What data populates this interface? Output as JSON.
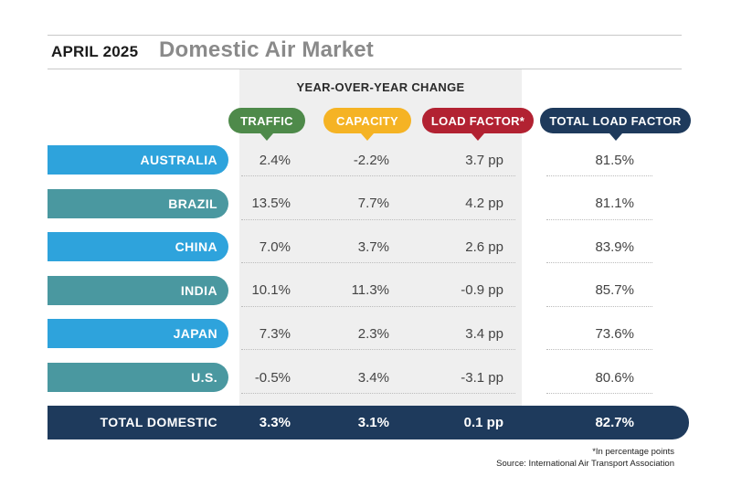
{
  "header": {
    "period": "APRIL 2025",
    "title": "Domestic Air Market"
  },
  "colors": {
    "traffic": "#4e8a4a",
    "capacity": "#f5b324",
    "load_factor": "#b22232",
    "total_load_factor": "#1e3a5c",
    "row_blue": "#2ea3dc",
    "row_teal": "#4a98a0",
    "total_bar": "#1e3a5c"
  },
  "chart_data": {
    "type": "table",
    "title": "Domestic Air Market",
    "group_header": "YEAR-OVER-YEAR CHANGE",
    "columns": [
      "TRAFFIC",
      "CAPACITY",
      "LOAD FACTOR*",
      "TOTAL LOAD FACTOR"
    ],
    "rows": [
      {
        "market": "AUSTRALIA",
        "traffic": "2.4%",
        "capacity": "-2.2%",
        "load_factor": "3.7 pp",
        "total_load_factor": "81.5%"
      },
      {
        "market": "BRAZIL",
        "traffic": "13.5%",
        "capacity": "7.7%",
        "load_factor": "4.2 pp",
        "total_load_factor": "81.1%"
      },
      {
        "market": "CHINA",
        "traffic": "7.0%",
        "capacity": "3.7%",
        "load_factor": "2.6 pp",
        "total_load_factor": "83.9%"
      },
      {
        "market": "INDIA",
        "traffic": "10.1%",
        "capacity": "11.3%",
        "load_factor": "-0.9 pp",
        "total_load_factor": "85.7%"
      },
      {
        "market": "JAPAN",
        "traffic": "7.3%",
        "capacity": "2.3%",
        "load_factor": "3.4 pp",
        "total_load_factor": "73.6%"
      },
      {
        "market": "U.S.",
        "traffic": "-0.5%",
        "capacity": "3.4%",
        "load_factor": "-3.1 pp",
        "total_load_factor": "80.6%"
      }
    ],
    "total": {
      "market": "TOTAL DOMESTIC",
      "traffic": "3.3%",
      "capacity": "3.1%",
      "load_factor": "0.1 pp",
      "total_load_factor": "82.7%"
    }
  },
  "footnote": "*In percentage points",
  "source": "Source: International Air Transport Association"
}
